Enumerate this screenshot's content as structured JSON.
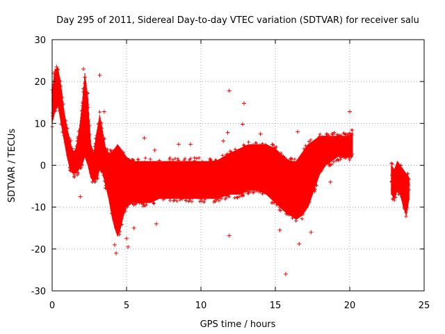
{
  "chart_data": {
    "type": "scatter",
    "title": "Day 295 of 2011, Sidereal Day-to-day VTEC variation (SDTVAR) for receiver salu",
    "xlabel": "GPS time / hours",
    "ylabel": "SDTVAR / TECUs",
    "xlim": [
      0,
      25
    ],
    "ylim": [
      -30,
      30
    ],
    "xticks": [
      "0",
      "5",
      "10",
      "15",
      "20",
      "25"
    ],
    "yticks": [
      "30",
      "20",
      "10",
      "0",
      "-10",
      "-20",
      "-30"
    ],
    "grid": true,
    "marker": "+",
    "series_color": "#ff0000",
    "series": [
      {
        "name": "SDTVAR",
        "band": [
          {
            "x": 0.0,
            "lo": 10,
            "hi": 18
          },
          {
            "x": 0.2,
            "lo": 13,
            "hi": 23
          },
          {
            "x": 0.4,
            "lo": 14,
            "hi": 23
          },
          {
            "x": 0.6,
            "lo": 10,
            "hi": 19
          },
          {
            "x": 0.8,
            "lo": 6,
            "hi": 13
          },
          {
            "x": 1.0,
            "lo": 2,
            "hi": 9
          },
          {
            "x": 1.2,
            "lo": -1,
            "hi": 6
          },
          {
            "x": 1.4,
            "lo": -2,
            "hi": 3
          },
          {
            "x": 1.6,
            "lo": -2,
            "hi": 4
          },
          {
            "x": 1.8,
            "lo": -1,
            "hi": 8
          },
          {
            "x": 2.0,
            "lo": 0,
            "hi": 14
          },
          {
            "x": 2.2,
            "lo": 2,
            "hi": 22
          },
          {
            "x": 2.4,
            "lo": 0,
            "hi": 16
          },
          {
            "x": 2.6,
            "lo": -3,
            "hi": 5
          },
          {
            "x": 2.8,
            "lo": -4,
            "hi": 3
          },
          {
            "x": 3.0,
            "lo": -3,
            "hi": 8
          },
          {
            "x": 3.2,
            "lo": -1,
            "hi": 12
          },
          {
            "x": 3.4,
            "lo": -2,
            "hi": 8
          },
          {
            "x": 3.6,
            "lo": -5,
            "hi": 4
          },
          {
            "x": 3.8,
            "lo": -8,
            "hi": 3
          },
          {
            "x": 4.0,
            "lo": -12,
            "hi": 3
          },
          {
            "x": 4.2,
            "lo": -15,
            "hi": 4
          },
          {
            "x": 4.4,
            "lo": -17,
            "hi": 5
          },
          {
            "x": 4.6,
            "lo": -15,
            "hi": 4
          },
          {
            "x": 4.8,
            "lo": -12,
            "hi": 3
          },
          {
            "x": 5.0,
            "lo": -10,
            "hi": 2
          },
          {
            "x": 5.4,
            "lo": -9,
            "hi": 1
          },
          {
            "x": 6.0,
            "lo": -9,
            "hi": 1
          },
          {
            "x": 6.6,
            "lo": -9,
            "hi": 1
          },
          {
            "x": 7.2,
            "lo": -8,
            "hi": 1
          },
          {
            "x": 8.0,
            "lo": -8,
            "hi": 1
          },
          {
            "x": 9.0,
            "lo": -8,
            "hi": 1
          },
          {
            "x": 10.0,
            "lo": -8,
            "hi": 1
          },
          {
            "x": 11.0,
            "lo": -8,
            "hi": 1
          },
          {
            "x": 12.0,
            "lo": -7,
            "hi": 3
          },
          {
            "x": 12.6,
            "lo": -7,
            "hi": 4
          },
          {
            "x": 13.2,
            "lo": -6,
            "hi": 5
          },
          {
            "x": 13.8,
            "lo": -6,
            "hi": 5
          },
          {
            "x": 14.4,
            "lo": -7,
            "hi": 5
          },
          {
            "x": 15.0,
            "lo": -9,
            "hi": 4
          },
          {
            "x": 15.6,
            "lo": -11,
            "hi": 2
          },
          {
            "x": 16.0,
            "lo": -12,
            "hi": 1
          },
          {
            "x": 16.4,
            "lo": -13,
            "hi": 1
          },
          {
            "x": 16.8,
            "lo": -12,
            "hi": 3
          },
          {
            "x": 17.2,
            "lo": -10,
            "hi": 5
          },
          {
            "x": 17.6,
            "lo": -6,
            "hi": 6
          },
          {
            "x": 18.0,
            "lo": -2,
            "hi": 7
          },
          {
            "x": 18.4,
            "lo": 0,
            "hi": 7
          },
          {
            "x": 18.8,
            "lo": 1,
            "hi": 7
          },
          {
            "x": 19.2,
            "lo": 2,
            "hi": 7
          },
          {
            "x": 19.6,
            "lo": 2,
            "hi": 7
          },
          {
            "x": 20.0,
            "lo": 2,
            "hi": 7
          },
          {
            "x": 20.2,
            "lo": 2,
            "hi": 8
          }
        ],
        "band2": [
          {
            "x": 22.8,
            "lo": -7,
            "hi": 0
          },
          {
            "x": 23.0,
            "lo": -8,
            "hi": -1
          },
          {
            "x": 23.2,
            "lo": -6,
            "hi": 1
          },
          {
            "x": 23.4,
            "lo": -7,
            "hi": 0
          },
          {
            "x": 23.6,
            "lo": -10,
            "hi": -1
          },
          {
            "x": 23.8,
            "lo": -12,
            "hi": -2
          },
          {
            "x": 24.0,
            "lo": -8,
            "hi": -3
          }
        ],
        "outliers": [
          [
            0.1,
            22
          ],
          [
            0.3,
            23.5
          ],
          [
            2.1,
            23
          ],
          [
            2.2,
            21
          ],
          [
            3.2,
            21.5
          ],
          [
            3.5,
            12.8
          ],
          [
            4.2,
            -19
          ],
          [
            4.3,
            -21
          ],
          [
            5.0,
            -17.5
          ],
          [
            5.1,
            -19.5
          ],
          [
            5.5,
            -15
          ],
          [
            6.2,
            6.5
          ],
          [
            6.9,
            3.6
          ],
          [
            7.0,
            -14
          ],
          [
            8.5,
            5
          ],
          [
            9.3,
            5
          ],
          [
            11.5,
            5.8
          ],
          [
            11.8,
            7.8
          ],
          [
            11.9,
            17.8
          ],
          [
            11.9,
            -16.8
          ],
          [
            12.8,
            9.8
          ],
          [
            12.9,
            14.8
          ],
          [
            14.0,
            7.5
          ],
          [
            14.8,
            5
          ],
          [
            15.3,
            -15.5
          ],
          [
            15.7,
            -26
          ],
          [
            16.6,
            -18.8
          ],
          [
            17.4,
            -16
          ],
          [
            20.0,
            12.8
          ],
          [
            18.7,
            -4
          ],
          [
            1.9,
            -7.5
          ],
          [
            16.5,
            8
          ]
        ]
      }
    ]
  }
}
